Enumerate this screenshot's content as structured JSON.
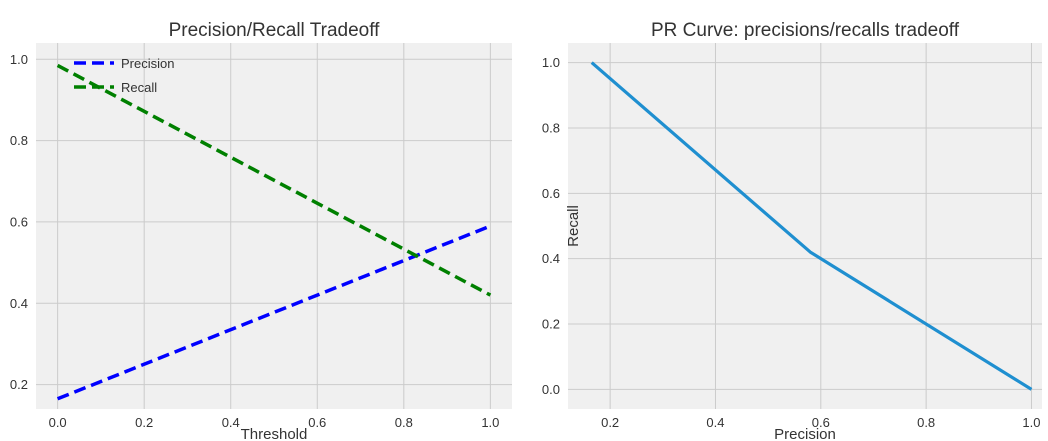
{
  "colors": {
    "figure_bg": "#ffffff",
    "axes_bg": "#f0f0f0",
    "grid": "#cbcbcb",
    "text": "#333333"
  },
  "chart_data": [
    {
      "type": "line",
      "title": "Precision/Recall Tradeoff",
      "xlabel": "Threshold",
      "ylabel": "",
      "xlim": [
        -0.05,
        1.05
      ],
      "ylim": [
        0.14,
        1.04
      ],
      "xticks": [
        0.0,
        0.2,
        0.4,
        0.6,
        0.8,
        1.0
      ],
      "xtick_labels": [
        "0.0",
        "0.2",
        "0.4",
        "0.6",
        "0.8",
        "1.0"
      ],
      "yticks": [
        0.2,
        0.4,
        0.6,
        0.8,
        1.0
      ],
      "ytick_labels": [
        "0.2",
        "0.4",
        "0.6",
        "0.8",
        "1.0"
      ],
      "grid": true,
      "legend": "top-left",
      "series": [
        {
          "name": "Precision",
          "color": "#0000ff",
          "style": "dashed",
          "x": [
            0.0,
            1.0
          ],
          "y": [
            0.165,
            0.59
          ]
        },
        {
          "name": "Recall",
          "color": "#008000",
          "style": "dashed",
          "x": [
            0.0,
            1.0
          ],
          "y": [
            0.985,
            0.42
          ]
        }
      ]
    },
    {
      "type": "line",
      "title": "PR Curve: precisions/recalls tradeoff",
      "xlabel": "Precision",
      "ylabel": "Recall",
      "xlim": [
        0.12,
        1.02
      ],
      "ylim": [
        -0.06,
        1.06
      ],
      "xticks": [
        0.2,
        0.4,
        0.6,
        0.8,
        1.0
      ],
      "xtick_labels": [
        "0.2",
        "0.4",
        "0.6",
        "0.8",
        "1.0"
      ],
      "yticks": [
        0.0,
        0.2,
        0.4,
        0.6,
        0.8,
        1.0
      ],
      "ytick_labels": [
        "0.0",
        "0.2",
        "0.4",
        "0.6",
        "0.8",
        "1.0"
      ],
      "grid": true,
      "series": [
        {
          "name": "",
          "color": "#1f8fd0",
          "style": "solid",
          "x": [
            0.165,
            0.58,
            1.0
          ],
          "y": [
            1.0,
            0.42,
            0.0
          ]
        }
      ]
    }
  ]
}
